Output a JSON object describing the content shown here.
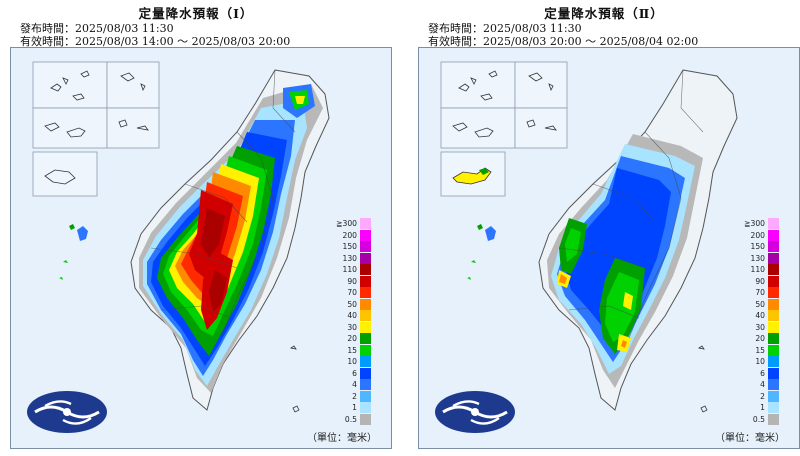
{
  "panels": [
    {
      "title": "定量降水預報（Ⅰ）",
      "issue_label": "發布時間",
      "issue_time": "2025/08/03 11:30",
      "valid_label": "有效時間",
      "valid_range": "2025/08/03 14:00 ～ 2025/08/03 20:00",
      "unit": "（單位：毫米）"
    },
    {
      "title": "定量降水預報（Ⅱ）",
      "issue_label": "發布時間",
      "issue_time": "2025/08/03 11:30",
      "valid_label": "有效時間",
      "valid_range": "2025/08/03 20:00 ～ 2025/08/04 02:00",
      "unit": "（單位：毫米）"
    }
  ],
  "legend": {
    "levels": [
      {
        "label": "≧300",
        "color": "#fda9fe"
      },
      {
        "label": "200",
        "color": "#fb00ff"
      },
      {
        "label": "150",
        "color": "#d400dd"
      },
      {
        "label": "130",
        "color": "#a300a8"
      },
      {
        "label": "110",
        "color": "#aa0000"
      },
      {
        "label": "90",
        "color": "#d10000"
      },
      {
        "label": "70",
        "color": "#ff2a00"
      },
      {
        "label": "50",
        "color": "#ff8a00"
      },
      {
        "label": "40",
        "color": "#ffc400"
      },
      {
        "label": "30",
        "color": "#fff100"
      },
      {
        "label": "20",
        "color": "#00a000"
      },
      {
        "label": "15",
        "color": "#00d100"
      },
      {
        "label": "10",
        "color": "#009bff"
      },
      {
        "label": "6",
        "color": "#0044ff"
      },
      {
        "label": "4",
        "color": "#2b75ff"
      },
      {
        "label": "2",
        "color": "#4fb6ff"
      },
      {
        "label": "1",
        "color": "#a8e3ff"
      },
      {
        "label": "0.5",
        "color": "#b4b4b4"
      }
    ]
  },
  "logo": {
    "icon": "cwa-logo-icon",
    "color": "#1d3a8f"
  }
}
